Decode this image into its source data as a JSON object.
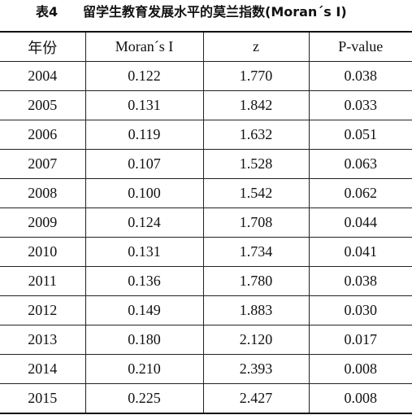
{
  "caption": {
    "label": "表4",
    "title": "留学生教育发展水平的莫兰指数(Moran´s I)"
  },
  "table": {
    "header": [
      "年份",
      "Moran´s I",
      "z",
      "P-value"
    ],
    "rows": [
      [
        "2004",
        "0.122",
        "1.770",
        "0.038"
      ],
      [
        "2005",
        "0.131",
        "1.842",
        "0.033"
      ],
      [
        "2006",
        "0.119",
        "1.632",
        "0.051"
      ],
      [
        "2007",
        "0.107",
        "1.528",
        "0.063"
      ],
      [
        "2008",
        "0.100",
        "1.542",
        "0.062"
      ],
      [
        "2009",
        "0.124",
        "1.708",
        "0.044"
      ],
      [
        "2010",
        "0.131",
        "1.734",
        "0.041"
      ],
      [
        "2011",
        "0.136",
        "1.780",
        "0.038"
      ],
      [
        "2012",
        "0.149",
        "1.883",
        "0.030"
      ],
      [
        "2013",
        "0.180",
        "2.120",
        "0.017"
      ],
      [
        "2014",
        "0.210",
        "2.393",
        "0.008"
      ],
      [
        "2015",
        "0.225",
        "2.427",
        "0.008"
      ]
    ]
  }
}
